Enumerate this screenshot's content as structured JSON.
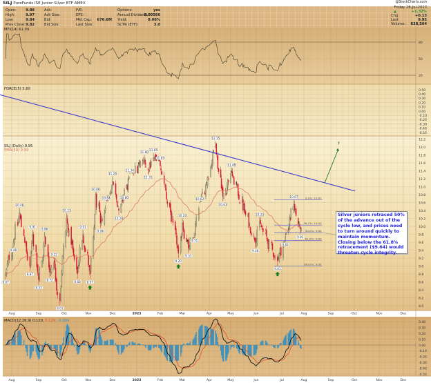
{
  "header": {
    "symbol": "SILJ",
    "name": "PureFunds ISE Junior Silver ETF",
    "exchange": "AMEX",
    "watermark": "@StockCharts.com"
  },
  "quote": {
    "col1": [
      {
        "label": "Open:",
        "value": "9.88"
      },
      {
        "label": "High:",
        "value": "9.97"
      },
      {
        "label": "Low:",
        "value": "9.84"
      },
      {
        "label": "Prev Close:",
        "value": "9.82"
      }
    ],
    "col2": [
      {
        "label": "Ask:",
        "value": ""
      },
      {
        "label": "Ask Size:",
        "value": ""
      },
      {
        "label": "Bid:",
        "value": ""
      },
      {
        "label": "Bid Size:",
        "value": ""
      }
    ],
    "col3": [
      {
        "label": "P/E:",
        "value": ""
      },
      {
        "label": "EPS:",
        "value": ""
      },
      {
        "label": "Mkt Cap:",
        "value": "676.6M"
      },
      {
        "label": "Last Size:",
        "value": ""
      }
    ],
    "col4": [
      {
        "label": "Options:",
        "value": "yes"
      },
      {
        "label": "Annual Dividend:",
        "value": "0.00566"
      },
      {
        "label": "Yield:",
        "value": "0.06%"
      },
      {
        "label": "SCTR (ETF):",
        "value": "3.0"
      }
    ]
  },
  "summary": {
    "date": "Friday 28-Jul-2023",
    "direction_icon": "up-triangle",
    "pct": "+1.32%",
    "chg_label": "Chg",
    "chg": "+0.13",
    "last_label": "Last",
    "last": "9.95",
    "volume_label": "Volume:",
    "volume": "838,564",
    "up_color": "#2a8a2a"
  },
  "annotation": "Silver juniors retraced 50% of the advance out of the cycle low, and prices need to turn around quickly to maintain momentum. Closing below the 61.8% retracement ($9.64) would threaten cycle integrity.",
  "chart_data": [
    {
      "panel": "mfi",
      "type": "line",
      "label": "MFI(14) 61.09",
      "yticks": [
        "80",
        "50",
        "20"
      ],
      "ylim": [
        0,
        100
      ],
      "levels": [
        80,
        20
      ]
    },
    {
      "panel": "force",
      "type": "line",
      "label": "FORCE(5) 5.60",
      "yticks": [
        "0.50",
        "0.40",
        "0.30",
        "0.20",
        "0.10",
        "0.00",
        "-0.10",
        "-0.20",
        "-0.30",
        "-0.40",
        "-0.50"
      ]
    },
    {
      "panel": "price",
      "type": "candlestick",
      "label": "SILJ (Daily) 9.95",
      "ema_label": "EMA(50) 9.99",
      "colors": {
        "up": "#4a4a3a",
        "down": "#d41c34",
        "ema": "#d9705a",
        "trendline": "#3a3acc",
        "fib": "#6f6fc2",
        "arrow": "#2a7a2a",
        "cycle_low_marker": "#0a7a1a"
      },
      "yticks": [
        "12.2",
        "12.0",
        "11.8",
        "11.6",
        "11.4",
        "11.2",
        "11.0",
        "10.8",
        "10.6",
        "10.4",
        "10.2",
        "10.0",
        "9.8",
        "9.6",
        "9.4",
        "9.2",
        "9.0",
        "8.8",
        "8.6",
        "8.4",
        "8.2",
        "8.0"
      ],
      "x_start": "2022-07-25",
      "x_end": "2023-07-28",
      "pivots": [
        {
          "date": "2022-07-25",
          "type": "L",
          "value": 8.67,
          "label": "8.67"
        },
        {
          "date": "2022-08-03",
          "type": "L",
          "value": 9.48,
          "label": "9.48"
        },
        {
          "date": "2022-08-10",
          "type": "H",
          "value": 10.46,
          "label": "10.46"
        },
        {
          "date": "2022-08-22",
          "type": "L",
          "value": 8.87,
          "label": "8.87"
        },
        {
          "date": "2022-08-25",
          "type": "H",
          "value": 9.91,
          "label": "9.91"
        },
        {
          "date": "2022-09-01",
          "type": "L",
          "value": 8.53,
          "label": "8.53"
        },
        {
          "date": "2022-09-08",
          "type": "H",
          "value": 9.86,
          "label": "9.86"
        },
        {
          "date": "2022-09-14",
          "type": "L",
          "value": 8.72,
          "label": "8.72"
        },
        {
          "date": "2022-09-19",
          "type": "H",
          "value": 9.22,
          "label": "9.22"
        },
        {
          "date": "2022-09-26",
          "type": "L",
          "value": 8.01,
          "label": "8.01"
        },
        {
          "date": "2022-10-04",
          "type": "H",
          "value": 10.33,
          "label": "10.33"
        },
        {
          "date": "2022-10-18",
          "type": "L",
          "value": 8.68,
          "label": "8.68"
        },
        {
          "date": "2022-10-25",
          "type": "H",
          "value": 9.91,
          "label": "9.91"
        },
        {
          "date": "2022-11-03",
          "type": "L",
          "value": 8.67,
          "label": "8.67",
          "marker": "cycle-low-arrow"
        },
        {
          "date": "2022-11-10",
          "type": "H",
          "value": 10.86,
          "label": "10.86"
        },
        {
          "date": "2022-11-16",
          "type": "L",
          "value": 9.96,
          "label": "9.96"
        },
        {
          "date": "2022-11-23",
          "type": "H",
          "value": 10.64,
          "label": "10.64"
        },
        {
          "date": "2022-12-01",
          "type": "H",
          "value": 11.26,
          "label": "11.26"
        },
        {
          "date": "2022-12-09",
          "type": "L",
          "value": 10.28,
          "label": "10.28"
        },
        {
          "date": "2022-12-16",
          "type": "L",
          "value": 10.8,
          "label": "10.80"
        },
        {
          "date": "2022-12-23",
          "type": "H",
          "value": 11.34,
          "label": "11.34"
        },
        {
          "date": "2023-01-11",
          "type": "H",
          "value": 11.8,
          "label": "11.80"
        },
        {
          "date": "2023-01-16",
          "type": "L",
          "value": 11.31,
          "label": "11.31"
        },
        {
          "date": "2023-01-23",
          "type": "H",
          "value": 11.85,
          "label": "11.85"
        },
        {
          "date": "2023-02-01",
          "type": "H",
          "value": 11.65,
          "label": "11.65"
        },
        {
          "date": "2023-02-24",
          "type": "L",
          "value": 9.2,
          "label": "9.20",
          "marker": "cycle-low-arrow"
        },
        {
          "date": "2023-03-01",
          "type": "H",
          "value": 10.2,
          "label": "10.20"
        },
        {
          "date": "2023-03-08",
          "type": "L",
          "value": 9.33,
          "label": "9.33"
        },
        {
          "date": "2023-03-15",
          "type": "L",
          "value": 9.71,
          "label": "9.71"
        },
        {
          "date": "2023-03-21",
          "type": "H",
          "value": 10.62,
          "label": "10.62"
        },
        {
          "date": "2023-04-10",
          "type": "H",
          "value": 12.15,
          "label": "12.15"
        },
        {
          "date": "2023-04-20",
          "type": "L",
          "value": 10.63,
          "label": "10.63"
        },
        {
          "date": "2023-05-02",
          "type": "H",
          "value": 11.48,
          "label": "11.48"
        },
        {
          "date": "2023-05-31",
          "type": "L",
          "value": 9.46,
          "label": "9.46"
        },
        {
          "date": "2023-06-05",
          "type": "H",
          "value": 10.23,
          "label": "10.23"
        },
        {
          "date": "2023-06-26",
          "type": "L",
          "value": 9.01,
          "label": "9.01",
          "marker": "cycle-low-arrow"
        },
        {
          "date": "2023-07-06",
          "type": "L",
          "value": 9.62,
          "label": "9.62"
        },
        {
          "date": "2023-07-18",
          "type": "H",
          "value": 10.67,
          "label": "10.67"
        },
        {
          "date": "2023-07-27",
          "type": "L",
          "value": 9.81,
          "label": "9.81"
        }
      ],
      "last_bar": {
        "date": "2023-07-28",
        "open": 9.88,
        "high": 9.97,
        "low": 9.84,
        "close": 9.95
      },
      "fibonacci": {
        "start": "2023-06-22",
        "end": "2023-08-22",
        "levels": [
          {
            "pct": "0.0%",
            "value": 10.67,
            "label": "0.0%: 10.67"
          },
          {
            "pct": "38.2%",
            "value": 10.03,
            "label": "38.2%: 10.03"
          },
          {
            "pct": "50.0%",
            "value": 9.84,
            "label": "50.0%: 9.84"
          },
          {
            "pct": "61.8%",
            "value": 9.64,
            "label": "61.8%: 9.64"
          },
          {
            "pct": "100.0%",
            "value": 9.0,
            "label": "100.0%: 9.00"
          }
        ]
      },
      "trendline": [
        {
          "date": "2022-07-11",
          "price": 13.36
        },
        {
          "date": "2023-10-02",
          "price": 10.89
        }
      ],
      "projection_arrow": {
        "from": {
          "date": "2023-08-25",
          "price": 11.1
        },
        "to": {
          "date": "2023-09-10",
          "price": 11.97
        },
        "label": "?"
      }
    },
    {
      "panel": "macd",
      "type": "line+histogram",
      "label_main": "MACD(12,26,9) 0.120,",
      "label_signal": "0.129,",
      "label_hist": "-0.009",
      "colors": {
        "macd": "#111111",
        "signal": "#e0502a",
        "hist": "#2f8ec4"
      },
      "yticks": [
        "0.40",
        "0.30",
        "0.20",
        "0.10",
        "0.00",
        "-0.10",
        "-0.20",
        "-0.30",
        "-0.40",
        "-0.50"
      ]
    },
    {
      "panel": "x-axis",
      "months": [
        "Aug",
        "Sep",
        "Oct",
        "Nov",
        "Dec",
        "2023",
        "Feb",
        "Mar",
        "Apr",
        "May",
        "Jun",
        "Jul",
        "Aug",
        "Sep",
        "Oct",
        "Nov",
        "Dec"
      ]
    }
  ]
}
